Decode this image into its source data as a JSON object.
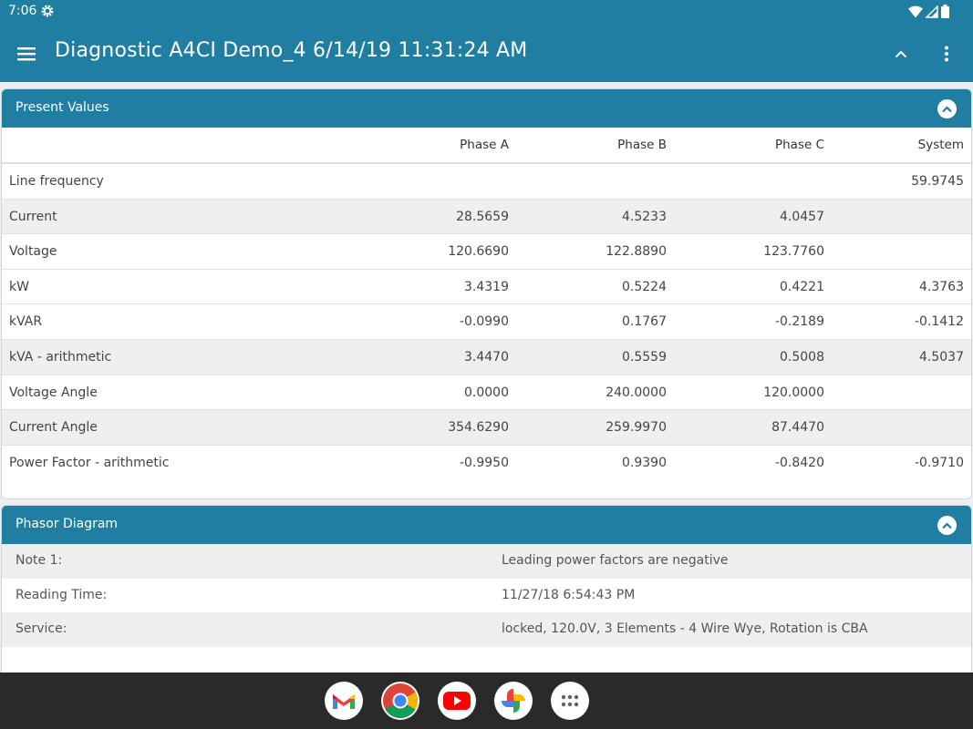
{
  "status_bar": {
    "time": "7:06"
  },
  "app_bar": {
    "title": "Diagnostic A4CI Demo_4 6/14/19 11:31:24 AM"
  },
  "present_values": {
    "header": "Present Values",
    "columns": [
      "",
      "Phase A",
      "Phase B",
      "Phase C",
      "System"
    ],
    "rows": [
      {
        "label": "Line frequency",
        "a": "",
        "b": "",
        "c": "",
        "sys": "59.9745"
      },
      {
        "label": "Current",
        "a": "28.5659",
        "b": "4.5233",
        "c": "4.0457",
        "sys": ""
      },
      {
        "label": "Voltage",
        "a": "120.6690",
        "b": "122.8890",
        "c": "123.7760",
        "sys": ""
      },
      {
        "label": "kW",
        "a": "3.4319",
        "b": "0.5224",
        "c": "0.4221",
        "sys": "4.3763"
      },
      {
        "label": "kVAR",
        "a": "-0.0990",
        "b": "0.1767",
        "c": "-0.2189",
        "sys": "-0.1412"
      },
      {
        "label": "kVA - arithmetic",
        "a": "3.4470",
        "b": "0.5559",
        "c": "0.5008",
        "sys": "4.5037"
      },
      {
        "label": "Voltage Angle",
        "a": "0.0000",
        "b": "240.0000",
        "c": "120.0000",
        "sys": ""
      },
      {
        "label": "Current Angle",
        "a": "354.6290",
        "b": "259.9970",
        "c": "87.4470",
        "sys": ""
      },
      {
        "label": "Power Factor - arithmetic",
        "a": "-0.9950",
        "b": "0.9390",
        "c": "-0.8420",
        "sys": "-0.9710"
      }
    ]
  },
  "phasor_diagram": {
    "header": "Phasor Diagram",
    "rows": [
      {
        "label": "Note 1:",
        "value": "Leading power factors are negative"
      },
      {
        "label": "Reading Time:",
        "value": "11/27/18 6:54:43 PM"
      },
      {
        "label": "Service:",
        "value": "locked, 120.0V, 3 Elements - 4 Wire Wye, Rotation is CBA"
      }
    ]
  },
  "dock": {
    "apps": [
      "gmail-icon",
      "chrome-icon",
      "youtube-icon",
      "photos-icon",
      "app-drawer-icon"
    ]
  },
  "colors": {
    "accent": "#1f7ea1",
    "alt_row": "#efefef",
    "nav": "#2a2a2a"
  }
}
